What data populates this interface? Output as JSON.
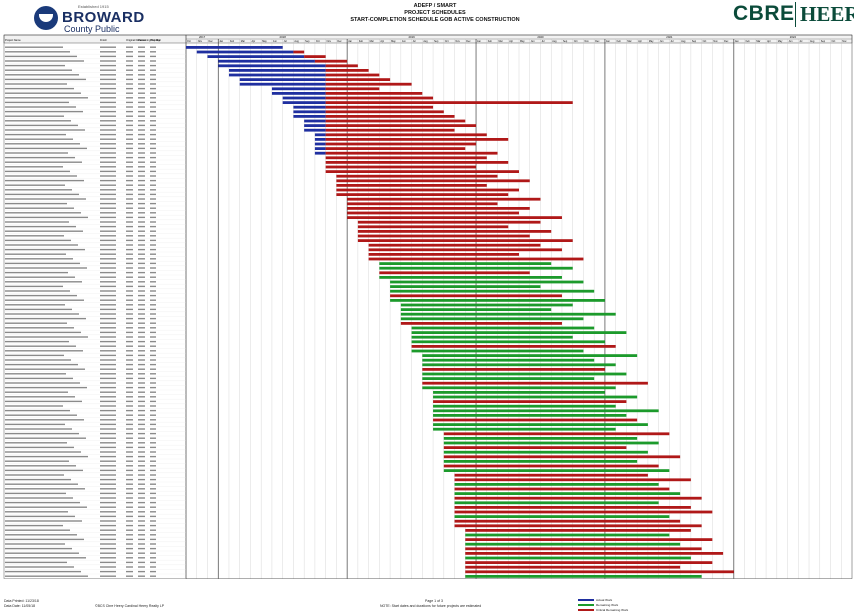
{
  "header": {
    "logo_tagline": "Established 1915",
    "district_name": "BROWARD",
    "district_subtitle": "County Public Schools",
    "title_line1": "ADEFP / SMART",
    "title_line2": "PROJECT SCHEDULES",
    "title_line3": "START-COMPLETION SCHEDULE GOB ACTIVE CONSTRUCTION",
    "brand_left": "CBRE",
    "brand_right": "HEERY"
  },
  "footer": {
    "data_printed": "Data Printed: 11/23/18",
    "data_date": "Data Date: 11/05/18",
    "copyright": "©BCS Cbre Heery Cardinal Heery Realty LP",
    "page": "Page 1 of 3",
    "note": "NOTE: Start dates and durations for future projects are estimated",
    "legend": [
      {
        "label": "Actual Work",
        "color": "#1f2fa0"
      },
      {
        "label": "Remaining Work",
        "color": "#1c9a2b"
      },
      {
        "label": "Critical Remaining Work",
        "color": "#b01818"
      }
    ]
  },
  "chart_data": {
    "type": "gantt",
    "title": "START-COMPLETION SCHEDULE GOB ACTIVE CONSTRUCTION",
    "columns": [
      "Project Name",
      "Finish",
      "Original Duration",
      "Remaining Duration",
      "Proj. Mgr"
    ],
    "years": [
      "2017",
      "2018",
      "2019",
      "2020",
      "2021",
      "2022"
    ],
    "months": [
      "Oct",
      "Nov",
      "Dec",
      "Jan",
      "Feb",
      "Mar",
      "Apr",
      "May",
      "Jun",
      "Jul",
      "Aug",
      "Sep"
    ],
    "timeline_start": "2017-10",
    "timeline_months": 62,
    "status_colors": {
      "actual": "#1f2fa0",
      "remaining": "#1c9a2b",
      "critical": "#b01818"
    },
    "tasks": [
      {
        "start": "2017-10",
        "actual_end": "2018-06",
        "finish": "2018-06",
        "status": "critical"
      },
      {
        "start": "2017-11",
        "actual_end": "2018-07",
        "finish": "2018-08",
        "status": "critical"
      },
      {
        "start": "2017-12",
        "actual_end": "2018-08",
        "finish": "2018-10",
        "status": "critical"
      },
      {
        "start": "2018-01",
        "actual_end": "2018-09",
        "finish": "2018-12",
        "status": "critical"
      },
      {
        "start": "2018-01",
        "actual_end": "2018-10",
        "finish": "2019-01",
        "status": "critical"
      },
      {
        "start": "2018-02",
        "actual_end": "2018-10",
        "finish": "2019-02",
        "status": "critical"
      },
      {
        "start": "2018-02",
        "actual_end": "2018-10",
        "finish": "2019-03",
        "status": "critical"
      },
      {
        "start": "2018-03",
        "actual_end": "2018-10",
        "finish": "2019-04",
        "status": "critical"
      },
      {
        "start": "2018-03",
        "actual_end": "2018-10",
        "finish": "2019-06",
        "status": "critical"
      },
      {
        "start": "2018-06",
        "actual_end": "2018-10",
        "finish": "2019-03",
        "status": "critical"
      },
      {
        "start": "2018-06",
        "actual_end": "2018-10",
        "finish": "2019-07",
        "status": "critical"
      },
      {
        "start": "2018-07",
        "actual_end": "2018-10",
        "finish": "2019-08",
        "status": "critical"
      },
      {
        "start": "2018-07",
        "actual_end": "2018-10",
        "finish": "2020-09",
        "status": "critical"
      },
      {
        "start": "2018-08",
        "actual_end": "2018-10",
        "finish": "2019-08",
        "status": "critical"
      },
      {
        "start": "2018-08",
        "actual_end": "2018-10",
        "finish": "2019-09",
        "status": "critical"
      },
      {
        "start": "2018-08",
        "actual_end": "2018-10",
        "finish": "2019-10",
        "status": "critical"
      },
      {
        "start": "2018-09",
        "actual_end": "2018-10",
        "finish": "2019-11",
        "status": "critical"
      },
      {
        "start": "2018-09",
        "actual_end": "2018-10",
        "finish": "2019-12",
        "status": "critical"
      },
      {
        "start": "2018-09",
        "actual_end": "2018-10",
        "finish": "2019-10",
        "status": "critical"
      },
      {
        "start": "2018-10",
        "actual_end": "2018-10",
        "finish": "2020-01",
        "status": "critical"
      },
      {
        "start": "2018-10",
        "actual_end": "2018-10",
        "finish": "2020-03",
        "status": "critical"
      },
      {
        "start": "2018-10",
        "actual_end": "2018-10",
        "finish": "2019-12",
        "status": "critical"
      },
      {
        "start": "2018-10",
        "actual_end": "2018-10",
        "finish": "2019-11",
        "status": "critical"
      },
      {
        "start": "2018-10",
        "actual_end": "2018-10",
        "finish": "2020-02",
        "status": "critical"
      },
      {
        "start": "2018-11",
        "actual_end": null,
        "finish": "2020-01",
        "status": "critical"
      },
      {
        "start": "2018-11",
        "actual_end": null,
        "finish": "2020-03",
        "status": "critical"
      },
      {
        "start": "2018-11",
        "actual_end": null,
        "finish": "2019-12",
        "status": "critical"
      },
      {
        "start": "2018-11",
        "actual_end": null,
        "finish": "2020-04",
        "status": "critical"
      },
      {
        "start": "2018-12",
        "actual_end": null,
        "finish": "2020-02",
        "status": "critical"
      },
      {
        "start": "2018-12",
        "actual_end": null,
        "finish": "2020-05",
        "status": "critical"
      },
      {
        "start": "2018-12",
        "actual_end": null,
        "finish": "2020-01",
        "status": "critical"
      },
      {
        "start": "2018-12",
        "actual_end": null,
        "finish": "2020-04",
        "status": "critical"
      },
      {
        "start": "2018-12",
        "actual_end": null,
        "finish": "2020-03",
        "status": "critical"
      },
      {
        "start": "2019-01",
        "actual_end": null,
        "finish": "2020-06",
        "status": "critical"
      },
      {
        "start": "2019-01",
        "actual_end": null,
        "finish": "2020-02",
        "status": "critical"
      },
      {
        "start": "2019-01",
        "actual_end": null,
        "finish": "2020-05",
        "status": "critical"
      },
      {
        "start": "2019-01",
        "actual_end": null,
        "finish": "2020-04",
        "status": "critical"
      },
      {
        "start": "2019-01",
        "actual_end": null,
        "finish": "2020-08",
        "status": "critical"
      },
      {
        "start": "2019-02",
        "actual_end": null,
        "finish": "2020-06",
        "status": "critical"
      },
      {
        "start": "2019-02",
        "actual_end": null,
        "finish": "2020-03",
        "status": "critical"
      },
      {
        "start": "2019-02",
        "actual_end": null,
        "finish": "2020-07",
        "status": "critical"
      },
      {
        "start": "2019-02",
        "actual_end": null,
        "finish": "2020-05",
        "status": "critical"
      },
      {
        "start": "2019-02",
        "actual_end": null,
        "finish": "2020-09",
        "status": "critical"
      },
      {
        "start": "2019-03",
        "actual_end": null,
        "finish": "2020-06",
        "status": "critical"
      },
      {
        "start": "2019-03",
        "actual_end": null,
        "finish": "2020-08",
        "status": "critical"
      },
      {
        "start": "2019-03",
        "actual_end": null,
        "finish": "2020-04",
        "status": "critical"
      },
      {
        "start": "2019-03",
        "actual_end": null,
        "finish": "2020-10",
        "status": "critical"
      },
      {
        "start": "2019-04",
        "actual_end": null,
        "finish": "2020-07",
        "status": "remaining"
      },
      {
        "start": "2019-04",
        "actual_end": null,
        "finish": "2020-09",
        "status": "remaining"
      },
      {
        "start": "2019-04",
        "actual_end": null,
        "finish": "2020-05",
        "status": "critical"
      },
      {
        "start": "2019-04",
        "actual_end": null,
        "finish": "2020-08",
        "status": "remaining"
      },
      {
        "start": "2019-05",
        "actual_end": null,
        "finish": "2020-10",
        "status": "remaining"
      },
      {
        "start": "2019-05",
        "actual_end": null,
        "finish": "2020-06",
        "status": "remaining"
      },
      {
        "start": "2019-05",
        "actual_end": null,
        "finish": "2020-11",
        "status": "remaining"
      },
      {
        "start": "2019-05",
        "actual_end": null,
        "finish": "2020-08",
        "status": "critical"
      },
      {
        "start": "2019-05",
        "actual_end": null,
        "finish": "2020-12",
        "status": "remaining"
      },
      {
        "start": "2019-06",
        "actual_end": null,
        "finish": "2020-09",
        "status": "remaining"
      },
      {
        "start": "2019-06",
        "actual_end": null,
        "finish": "2020-07",
        "status": "remaining"
      },
      {
        "start": "2019-06",
        "actual_end": null,
        "finish": "2021-01",
        "status": "remaining"
      },
      {
        "start": "2019-06",
        "actual_end": null,
        "finish": "2020-10",
        "status": "remaining"
      },
      {
        "start": "2019-06",
        "actual_end": null,
        "finish": "2020-08",
        "status": "critical"
      },
      {
        "start": "2019-07",
        "actual_end": null,
        "finish": "2020-11",
        "status": "remaining"
      },
      {
        "start": "2019-07",
        "actual_end": null,
        "finish": "2021-02",
        "status": "remaining"
      },
      {
        "start": "2019-07",
        "actual_end": null,
        "finish": "2020-09",
        "status": "remaining"
      },
      {
        "start": "2019-07",
        "actual_end": null,
        "finish": "2020-12",
        "status": "remaining"
      },
      {
        "start": "2019-07",
        "actual_end": null,
        "finish": "2021-01",
        "status": "critical"
      },
      {
        "start": "2019-07",
        "actual_end": null,
        "finish": "2020-10",
        "status": "remaining"
      },
      {
        "start": "2019-08",
        "actual_end": null,
        "finish": "2021-03",
        "status": "remaining"
      },
      {
        "start": "2019-08",
        "actual_end": null,
        "finish": "2020-11",
        "status": "remaining"
      },
      {
        "start": "2019-08",
        "actual_end": null,
        "finish": "2021-01",
        "status": "remaining"
      },
      {
        "start": "2019-08",
        "actual_end": null,
        "finish": "2020-12",
        "status": "critical"
      },
      {
        "start": "2019-08",
        "actual_end": null,
        "finish": "2021-02",
        "status": "remaining"
      },
      {
        "start": "2019-08",
        "actual_end": null,
        "finish": "2020-11",
        "status": "remaining"
      },
      {
        "start": "2019-08",
        "actual_end": null,
        "finish": "2021-04",
        "status": "critical"
      },
      {
        "start": "2019-08",
        "actual_end": null,
        "finish": "2021-01",
        "status": "remaining"
      },
      {
        "start": "2019-09",
        "actual_end": null,
        "finish": "2020-12",
        "status": "remaining"
      },
      {
        "start": "2019-09",
        "actual_end": null,
        "finish": "2021-03",
        "status": "remaining"
      },
      {
        "start": "2019-09",
        "actual_end": null,
        "finish": "2021-02",
        "status": "critical"
      },
      {
        "start": "2019-09",
        "actual_end": null,
        "finish": "2021-01",
        "status": "remaining"
      },
      {
        "start": "2019-09",
        "actual_end": null,
        "finish": "2021-05",
        "status": "remaining"
      },
      {
        "start": "2019-09",
        "actual_end": null,
        "finish": "2021-02",
        "status": "remaining"
      },
      {
        "start": "2019-09",
        "actual_end": null,
        "finish": "2021-03",
        "status": "critical"
      },
      {
        "start": "2019-09",
        "actual_end": null,
        "finish": "2021-04",
        "status": "remaining"
      },
      {
        "start": "2019-09",
        "actual_end": null,
        "finish": "2021-01",
        "status": "remaining"
      },
      {
        "start": "2019-10",
        "actual_end": null,
        "finish": "2021-06",
        "status": "critical"
      },
      {
        "start": "2019-10",
        "actual_end": null,
        "finish": "2021-03",
        "status": "remaining"
      },
      {
        "start": "2019-10",
        "actual_end": null,
        "finish": "2021-05",
        "status": "remaining"
      },
      {
        "start": "2019-10",
        "actual_end": null,
        "finish": "2021-02",
        "status": "critical"
      },
      {
        "start": "2019-10",
        "actual_end": null,
        "finish": "2021-04",
        "status": "remaining"
      },
      {
        "start": "2019-10",
        "actual_end": null,
        "finish": "2021-07",
        "status": "critical"
      },
      {
        "start": "2019-10",
        "actual_end": null,
        "finish": "2021-03",
        "status": "remaining"
      },
      {
        "start": "2019-10",
        "actual_end": null,
        "finish": "2021-05",
        "status": "critical"
      },
      {
        "start": "2019-10",
        "actual_end": null,
        "finish": "2021-06",
        "status": "remaining"
      },
      {
        "start": "2019-11",
        "actual_end": null,
        "finish": "2021-04",
        "status": "critical"
      },
      {
        "start": "2019-11",
        "actual_end": null,
        "finish": "2021-08",
        "status": "critical"
      },
      {
        "start": "2019-11",
        "actual_end": null,
        "finish": "2021-05",
        "status": "remaining"
      },
      {
        "start": "2019-11",
        "actual_end": null,
        "finish": "2021-06",
        "status": "critical"
      },
      {
        "start": "2019-11",
        "actual_end": null,
        "finish": "2021-07",
        "status": "remaining"
      },
      {
        "start": "2019-11",
        "actual_end": null,
        "finish": "2021-09",
        "status": "critical"
      },
      {
        "start": "2019-11",
        "actual_end": null,
        "finish": "2021-05",
        "status": "remaining"
      },
      {
        "start": "2019-11",
        "actual_end": null,
        "finish": "2021-08",
        "status": "critical"
      },
      {
        "start": "2019-11",
        "actual_end": null,
        "finish": "2021-10",
        "status": "critical"
      },
      {
        "start": "2019-11",
        "actual_end": null,
        "finish": "2021-06",
        "status": "remaining"
      },
      {
        "start": "2019-11",
        "actual_end": null,
        "finish": "2021-07",
        "status": "critical"
      },
      {
        "start": "2019-11",
        "actual_end": null,
        "finish": "2021-09",
        "status": "critical"
      },
      {
        "start": "2019-12",
        "actual_end": null,
        "finish": "2021-08",
        "status": "critical"
      },
      {
        "start": "2019-12",
        "actual_end": null,
        "finish": "2021-06",
        "status": "remaining"
      },
      {
        "start": "2019-12",
        "actual_end": null,
        "finish": "2021-10",
        "status": "critical"
      },
      {
        "start": "2019-12",
        "actual_end": null,
        "finish": "2021-07",
        "status": "remaining"
      },
      {
        "start": "2019-12",
        "actual_end": null,
        "finish": "2021-09",
        "status": "critical"
      },
      {
        "start": "2019-12",
        "actual_end": null,
        "finish": "2021-11",
        "status": "critical"
      },
      {
        "start": "2019-12",
        "actual_end": null,
        "finish": "2021-08",
        "status": "remaining"
      },
      {
        "start": "2019-12",
        "actual_end": null,
        "finish": "2021-10",
        "status": "critical"
      },
      {
        "start": "2019-12",
        "actual_end": null,
        "finish": "2021-07",
        "status": "critical"
      },
      {
        "start": "2019-12",
        "actual_end": null,
        "finish": "2021-12",
        "status": "critical"
      },
      {
        "start": "2019-12",
        "actual_end": null,
        "finish": "2021-09",
        "status": "remaining"
      }
    ]
  }
}
